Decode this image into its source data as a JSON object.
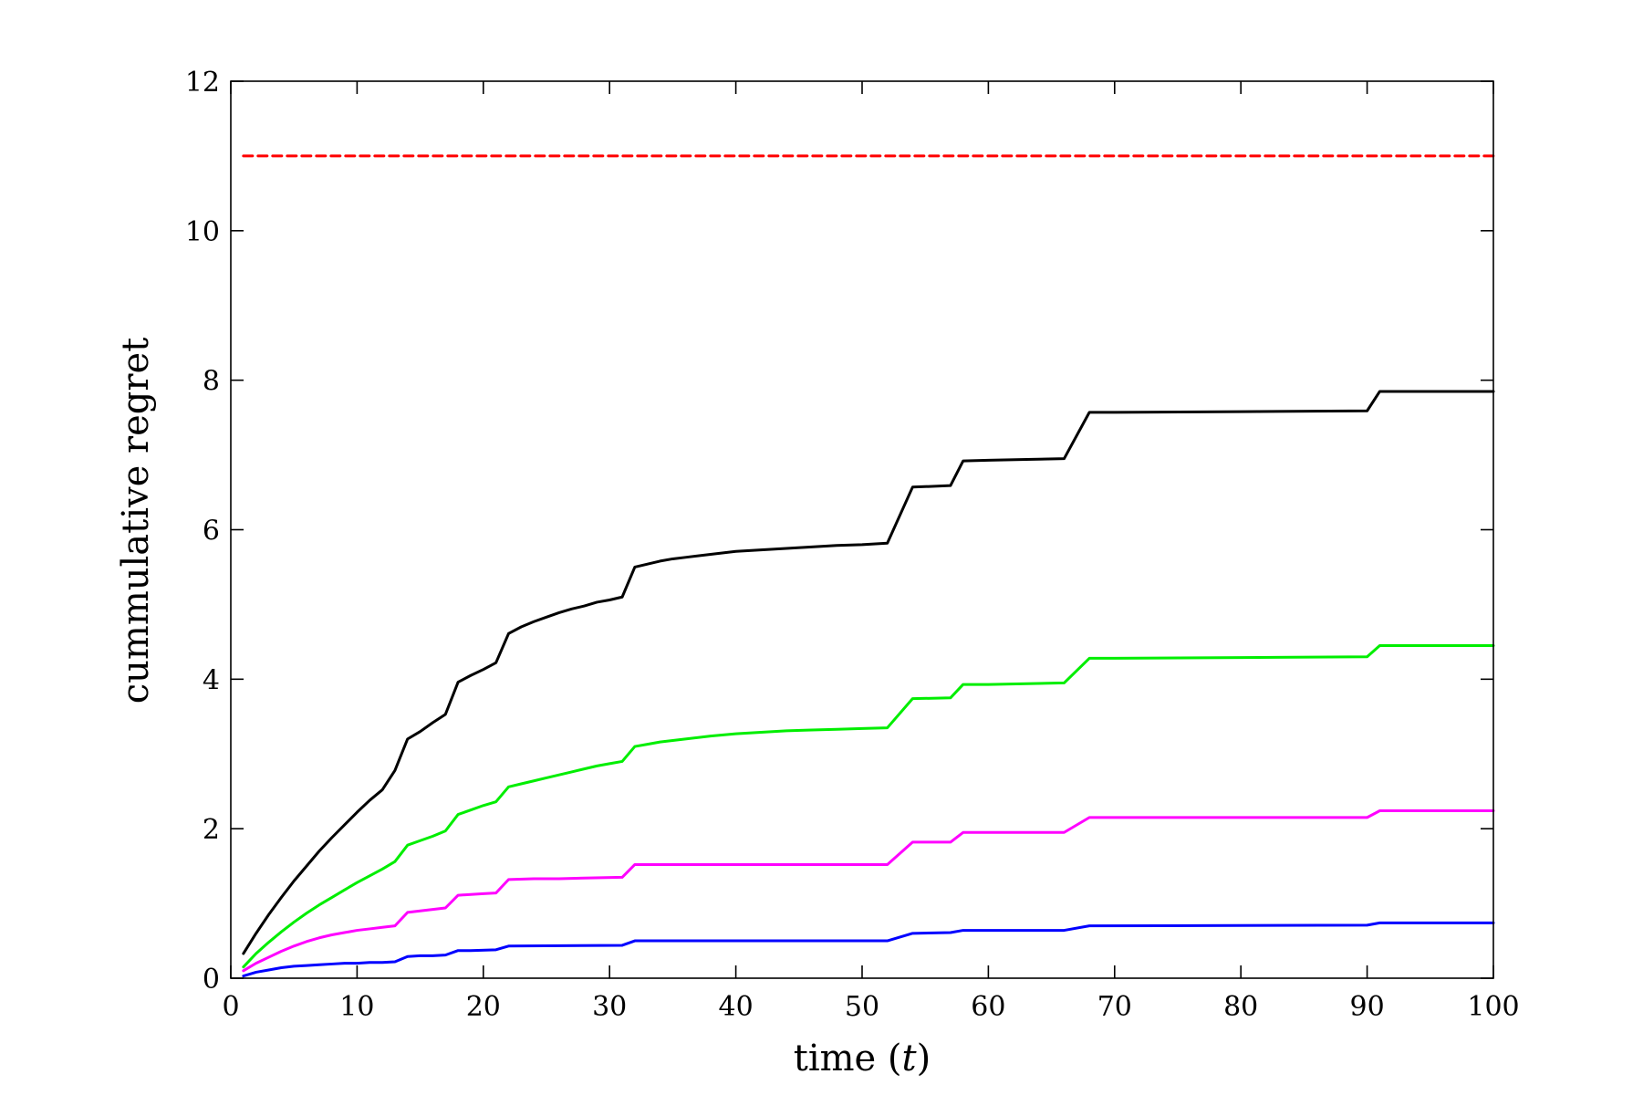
{
  "chart_data": {
    "type": "line",
    "title": "",
    "xlabel_pre": "time (",
    "xlabel_var": "t",
    "xlabel_post": ")",
    "ylabel": "cummulative regret",
    "xlim": [
      0,
      100
    ],
    "ylim": [
      0,
      12
    ],
    "xticks": [
      "0",
      "10",
      "20",
      "30",
      "40",
      "50",
      "60",
      "70",
      "80",
      "90",
      "100"
    ],
    "yticks": [
      "0",
      "2",
      "4",
      "6",
      "8",
      "10",
      "12"
    ],
    "grid": false,
    "legend": "none",
    "series": [
      {
        "color": "#ff0000",
        "style": "dashed",
        "points": [
          [
            1,
            11
          ],
          [
            100,
            11
          ]
        ]
      },
      {
        "color": "#000000",
        "style": "solid",
        "points": [
          [
            1,
            0.33
          ],
          [
            2,
            0.6
          ],
          [
            3,
            0.85
          ],
          [
            4,
            1.08
          ],
          [
            5,
            1.3
          ],
          [
            6,
            1.5
          ],
          [
            7,
            1.7
          ],
          [
            8,
            1.88
          ],
          [
            9,
            2.05
          ],
          [
            10,
            2.22
          ],
          [
            11,
            2.38
          ],
          [
            12,
            2.52
          ],
          [
            13,
            2.78
          ],
          [
            14,
            3.2
          ],
          [
            15,
            3.3
          ],
          [
            16,
            3.42
          ],
          [
            17,
            3.53
          ],
          [
            18,
            3.96
          ],
          [
            19,
            4.05
          ],
          [
            20,
            4.13
          ],
          [
            21,
            4.22
          ],
          [
            22,
            4.61
          ],
          [
            23,
            4.7
          ],
          [
            24,
            4.77
          ],
          [
            25,
            4.83
          ],
          [
            26,
            4.89
          ],
          [
            27,
            4.94
          ],
          [
            28,
            4.98
          ],
          [
            29,
            5.03
          ],
          [
            30,
            5.06
          ],
          [
            31,
            5.1
          ],
          [
            32,
            5.5
          ],
          [
            33,
            5.54
          ],
          [
            34,
            5.58
          ],
          [
            35,
            5.61
          ],
          [
            36,
            5.63
          ],
          [
            38,
            5.67
          ],
          [
            40,
            5.71
          ],
          [
            42,
            5.73
          ],
          [
            44,
            5.75
          ],
          [
            46,
            5.77
          ],
          [
            48,
            5.79
          ],
          [
            50,
            5.8
          ],
          [
            52,
            5.82
          ],
          [
            54,
            6.57
          ],
          [
            57,
            6.59
          ],
          [
            58,
            6.92
          ],
          [
            60,
            6.93
          ],
          [
            63,
            6.94
          ],
          [
            66,
            6.95
          ],
          [
            68,
            7.57
          ],
          [
            70,
            7.57
          ],
          [
            80,
            7.58
          ],
          [
            90,
            7.59
          ],
          [
            91,
            7.85
          ],
          [
            100,
            7.85
          ]
        ]
      },
      {
        "color": "#00ee00",
        "style": "solid",
        "points": [
          [
            1,
            0.15
          ],
          [
            2,
            0.33
          ],
          [
            3,
            0.48
          ],
          [
            4,
            0.62
          ],
          [
            5,
            0.75
          ],
          [
            6,
            0.87
          ],
          [
            7,
            0.98
          ],
          [
            8,
            1.08
          ],
          [
            9,
            1.18
          ],
          [
            10,
            1.28
          ],
          [
            11,
            1.37
          ],
          [
            12,
            1.46
          ],
          [
            13,
            1.56
          ],
          [
            14,
            1.78
          ],
          [
            15,
            1.84
          ],
          [
            16,
            1.9
          ],
          [
            17,
            1.97
          ],
          [
            18,
            2.19
          ],
          [
            19,
            2.25
          ],
          [
            20,
            2.31
          ],
          [
            21,
            2.36
          ],
          [
            22,
            2.56
          ],
          [
            23,
            2.6
          ],
          [
            24,
            2.64
          ],
          [
            25,
            2.68
          ],
          [
            26,
            2.72
          ],
          [
            27,
            2.76
          ],
          [
            28,
            2.8
          ],
          [
            29,
            2.84
          ],
          [
            30,
            2.87
          ],
          [
            31,
            2.9
          ],
          [
            32,
            3.1
          ],
          [
            33,
            3.13
          ],
          [
            34,
            3.16
          ],
          [
            36,
            3.2
          ],
          [
            38,
            3.24
          ],
          [
            40,
            3.27
          ],
          [
            42,
            3.29
          ],
          [
            44,
            3.31
          ],
          [
            46,
            3.32
          ],
          [
            48,
            3.33
          ],
          [
            50,
            3.34
          ],
          [
            52,
            3.35
          ],
          [
            54,
            3.74
          ],
          [
            57,
            3.75
          ],
          [
            58,
            3.93
          ],
          [
            60,
            3.93
          ],
          [
            66,
            3.95
          ],
          [
            68,
            4.28
          ],
          [
            70,
            4.28
          ],
          [
            80,
            4.29
          ],
          [
            90,
            4.3
          ],
          [
            91,
            4.45
          ],
          [
            100,
            4.45
          ]
        ]
      },
      {
        "color": "#ff00ff",
        "style": "solid",
        "points": [
          [
            1,
            0.1
          ],
          [
            2,
            0.2
          ],
          [
            3,
            0.28
          ],
          [
            4,
            0.36
          ],
          [
            5,
            0.43
          ],
          [
            6,
            0.49
          ],
          [
            7,
            0.54
          ],
          [
            8,
            0.58
          ],
          [
            9,
            0.61
          ],
          [
            10,
            0.64
          ],
          [
            11,
            0.66
          ],
          [
            12,
            0.68
          ],
          [
            13,
            0.7
          ],
          [
            14,
            0.88
          ],
          [
            15,
            0.9
          ],
          [
            16,
            0.92
          ],
          [
            17,
            0.94
          ],
          [
            18,
            1.11
          ],
          [
            19,
            1.12
          ],
          [
            20,
            1.13
          ],
          [
            21,
            1.14
          ],
          [
            22,
            1.32
          ],
          [
            24,
            1.33
          ],
          [
            26,
            1.33
          ],
          [
            28,
            1.34
          ],
          [
            31,
            1.35
          ],
          [
            32,
            1.52
          ],
          [
            40,
            1.52
          ],
          [
            52,
            1.52
          ],
          [
            54,
            1.82
          ],
          [
            57,
            1.82
          ],
          [
            58,
            1.95
          ],
          [
            66,
            1.95
          ],
          [
            68,
            2.15
          ],
          [
            90,
            2.15
          ],
          [
            91,
            2.24
          ],
          [
            100,
            2.24
          ]
        ]
      },
      {
        "color": "#0000ff",
        "style": "solid",
        "points": [
          [
            1,
            0.03
          ],
          [
            2,
            0.08
          ],
          [
            3,
            0.11
          ],
          [
            4,
            0.14
          ],
          [
            5,
            0.16
          ],
          [
            6,
            0.17
          ],
          [
            7,
            0.18
          ],
          [
            8,
            0.19
          ],
          [
            9,
            0.2
          ],
          [
            10,
            0.2
          ],
          [
            11,
            0.21
          ],
          [
            12,
            0.21
          ],
          [
            13,
            0.22
          ],
          [
            14,
            0.29
          ],
          [
            15,
            0.3
          ],
          [
            16,
            0.3
          ],
          [
            17,
            0.31
          ],
          [
            18,
            0.37
          ],
          [
            19,
            0.37
          ],
          [
            21,
            0.38
          ],
          [
            22,
            0.43
          ],
          [
            31,
            0.44
          ],
          [
            32,
            0.5
          ],
          [
            52,
            0.5
          ],
          [
            54,
            0.6
          ],
          [
            57,
            0.61
          ],
          [
            58,
            0.64
          ],
          [
            66,
            0.64
          ],
          [
            68,
            0.7
          ],
          [
            90,
            0.71
          ],
          [
            91,
            0.74
          ],
          [
            100,
            0.74
          ]
        ]
      }
    ]
  }
}
